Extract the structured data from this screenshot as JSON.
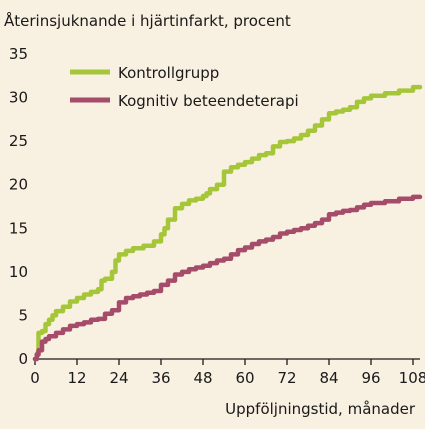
{
  "chart_data": {
    "type": "line",
    "title": "",
    "ylabel": "Återinsjuknande i hjärtinfarkt, procent",
    "xlabel": "Uppföljningstid, månader",
    "xlim": [
      0,
      110
    ],
    "ylim": [
      0,
      35
    ],
    "x_ticks": [
      0,
      12,
      24,
      36,
      48,
      60,
      72,
      84,
      96,
      108
    ],
    "y_ticks": [
      0,
      5,
      10,
      15,
      20,
      25,
      30,
      35
    ],
    "grid": false,
    "legend_position": "top-left",
    "series": [
      {
        "name": "Kontrollgrupp",
        "color": "#a6c639",
        "points": [
          [
            0,
            0
          ],
          [
            0.5,
            0.6
          ],
          [
            1,
            3
          ],
          [
            2,
            3.2
          ],
          [
            3,
            4
          ],
          [
            4,
            4.5
          ],
          [
            5,
            5
          ],
          [
            6,
            5.5
          ],
          [
            8,
            6
          ],
          [
            10,
            6.6
          ],
          [
            12,
            7
          ],
          [
            14,
            7.4
          ],
          [
            16,
            7.7
          ],
          [
            18,
            8
          ],
          [
            19,
            9
          ],
          [
            20,
            9.2
          ],
          [
            22,
            10
          ],
          [
            23,
            11.3
          ],
          [
            24,
            12
          ],
          [
            26,
            12.4
          ],
          [
            28,
            12.7
          ],
          [
            31,
            13
          ],
          [
            34,
            13.5
          ],
          [
            36,
            14.3
          ],
          [
            37,
            15
          ],
          [
            38,
            16
          ],
          [
            40,
            17.3
          ],
          [
            42,
            17.8
          ],
          [
            44,
            18.2
          ],
          [
            46,
            18.4
          ],
          [
            48,
            18.7
          ],
          [
            49,
            19
          ],
          [
            50,
            19.5
          ],
          [
            52,
            20
          ],
          [
            54,
            21.5
          ],
          [
            56,
            22
          ],
          [
            58,
            22.3
          ],
          [
            60,
            22.6
          ],
          [
            62,
            23
          ],
          [
            64,
            23.4
          ],
          [
            66,
            23.6
          ],
          [
            68,
            24.4
          ],
          [
            70,
            24.9
          ],
          [
            72,
            25
          ],
          [
            74,
            25.3
          ],
          [
            76,
            25.7
          ],
          [
            78,
            26.2
          ],
          [
            80,
            26.8
          ],
          [
            82,
            27.5
          ],
          [
            84,
            28.2
          ],
          [
            86,
            28.4
          ],
          [
            88,
            28.6
          ],
          [
            90,
            28.9
          ],
          [
            92,
            29.5
          ],
          [
            94,
            29.9
          ],
          [
            96,
            30.2
          ],
          [
            100,
            30.5
          ],
          [
            104,
            30.8
          ],
          [
            108,
            31.2
          ],
          [
            110,
            31.2
          ]
        ]
      },
      {
        "name": "Kognitiv beteendeterapi",
        "color": "#a54c6a",
        "points": [
          [
            0,
            0
          ],
          [
            0.5,
            0.5
          ],
          [
            1,
            1
          ],
          [
            2,
            2
          ],
          [
            3,
            2.3
          ],
          [
            4,
            2.6
          ],
          [
            6,
            3
          ],
          [
            8,
            3.4
          ],
          [
            10,
            3.8
          ],
          [
            12,
            4
          ],
          [
            14,
            4.2
          ],
          [
            16,
            4.5
          ],
          [
            18,
            4.6
          ],
          [
            20,
            5.2
          ],
          [
            22,
            5.6
          ],
          [
            24,
            6.5
          ],
          [
            26,
            7
          ],
          [
            28,
            7.2
          ],
          [
            30,
            7.4
          ],
          [
            32,
            7.6
          ],
          [
            34,
            7.8
          ],
          [
            36,
            8.5
          ],
          [
            38,
            9
          ],
          [
            40,
            9.7
          ],
          [
            42,
            10
          ],
          [
            44,
            10.3
          ],
          [
            46,
            10.5
          ],
          [
            48,
            10.7
          ],
          [
            50,
            11
          ],
          [
            52,
            11.3
          ],
          [
            54,
            11.5
          ],
          [
            56,
            12
          ],
          [
            58,
            12.5
          ],
          [
            60,
            12.8
          ],
          [
            62,
            13.2
          ],
          [
            64,
            13.5
          ],
          [
            66,
            13.7
          ],
          [
            68,
            14
          ],
          [
            70,
            14.4
          ],
          [
            72,
            14.6
          ],
          [
            74,
            14.8
          ],
          [
            76,
            15
          ],
          [
            78,
            15.3
          ],
          [
            80,
            15.6
          ],
          [
            82,
            16
          ],
          [
            84,
            16.6
          ],
          [
            86,
            16.8
          ],
          [
            88,
            17
          ],
          [
            90,
            17.1
          ],
          [
            92,
            17.4
          ],
          [
            94,
            17.7
          ],
          [
            96,
            17.9
          ],
          [
            100,
            18.1
          ],
          [
            104,
            18.4
          ],
          [
            108,
            18.6
          ],
          [
            110,
            18.6
          ]
        ]
      }
    ]
  }
}
